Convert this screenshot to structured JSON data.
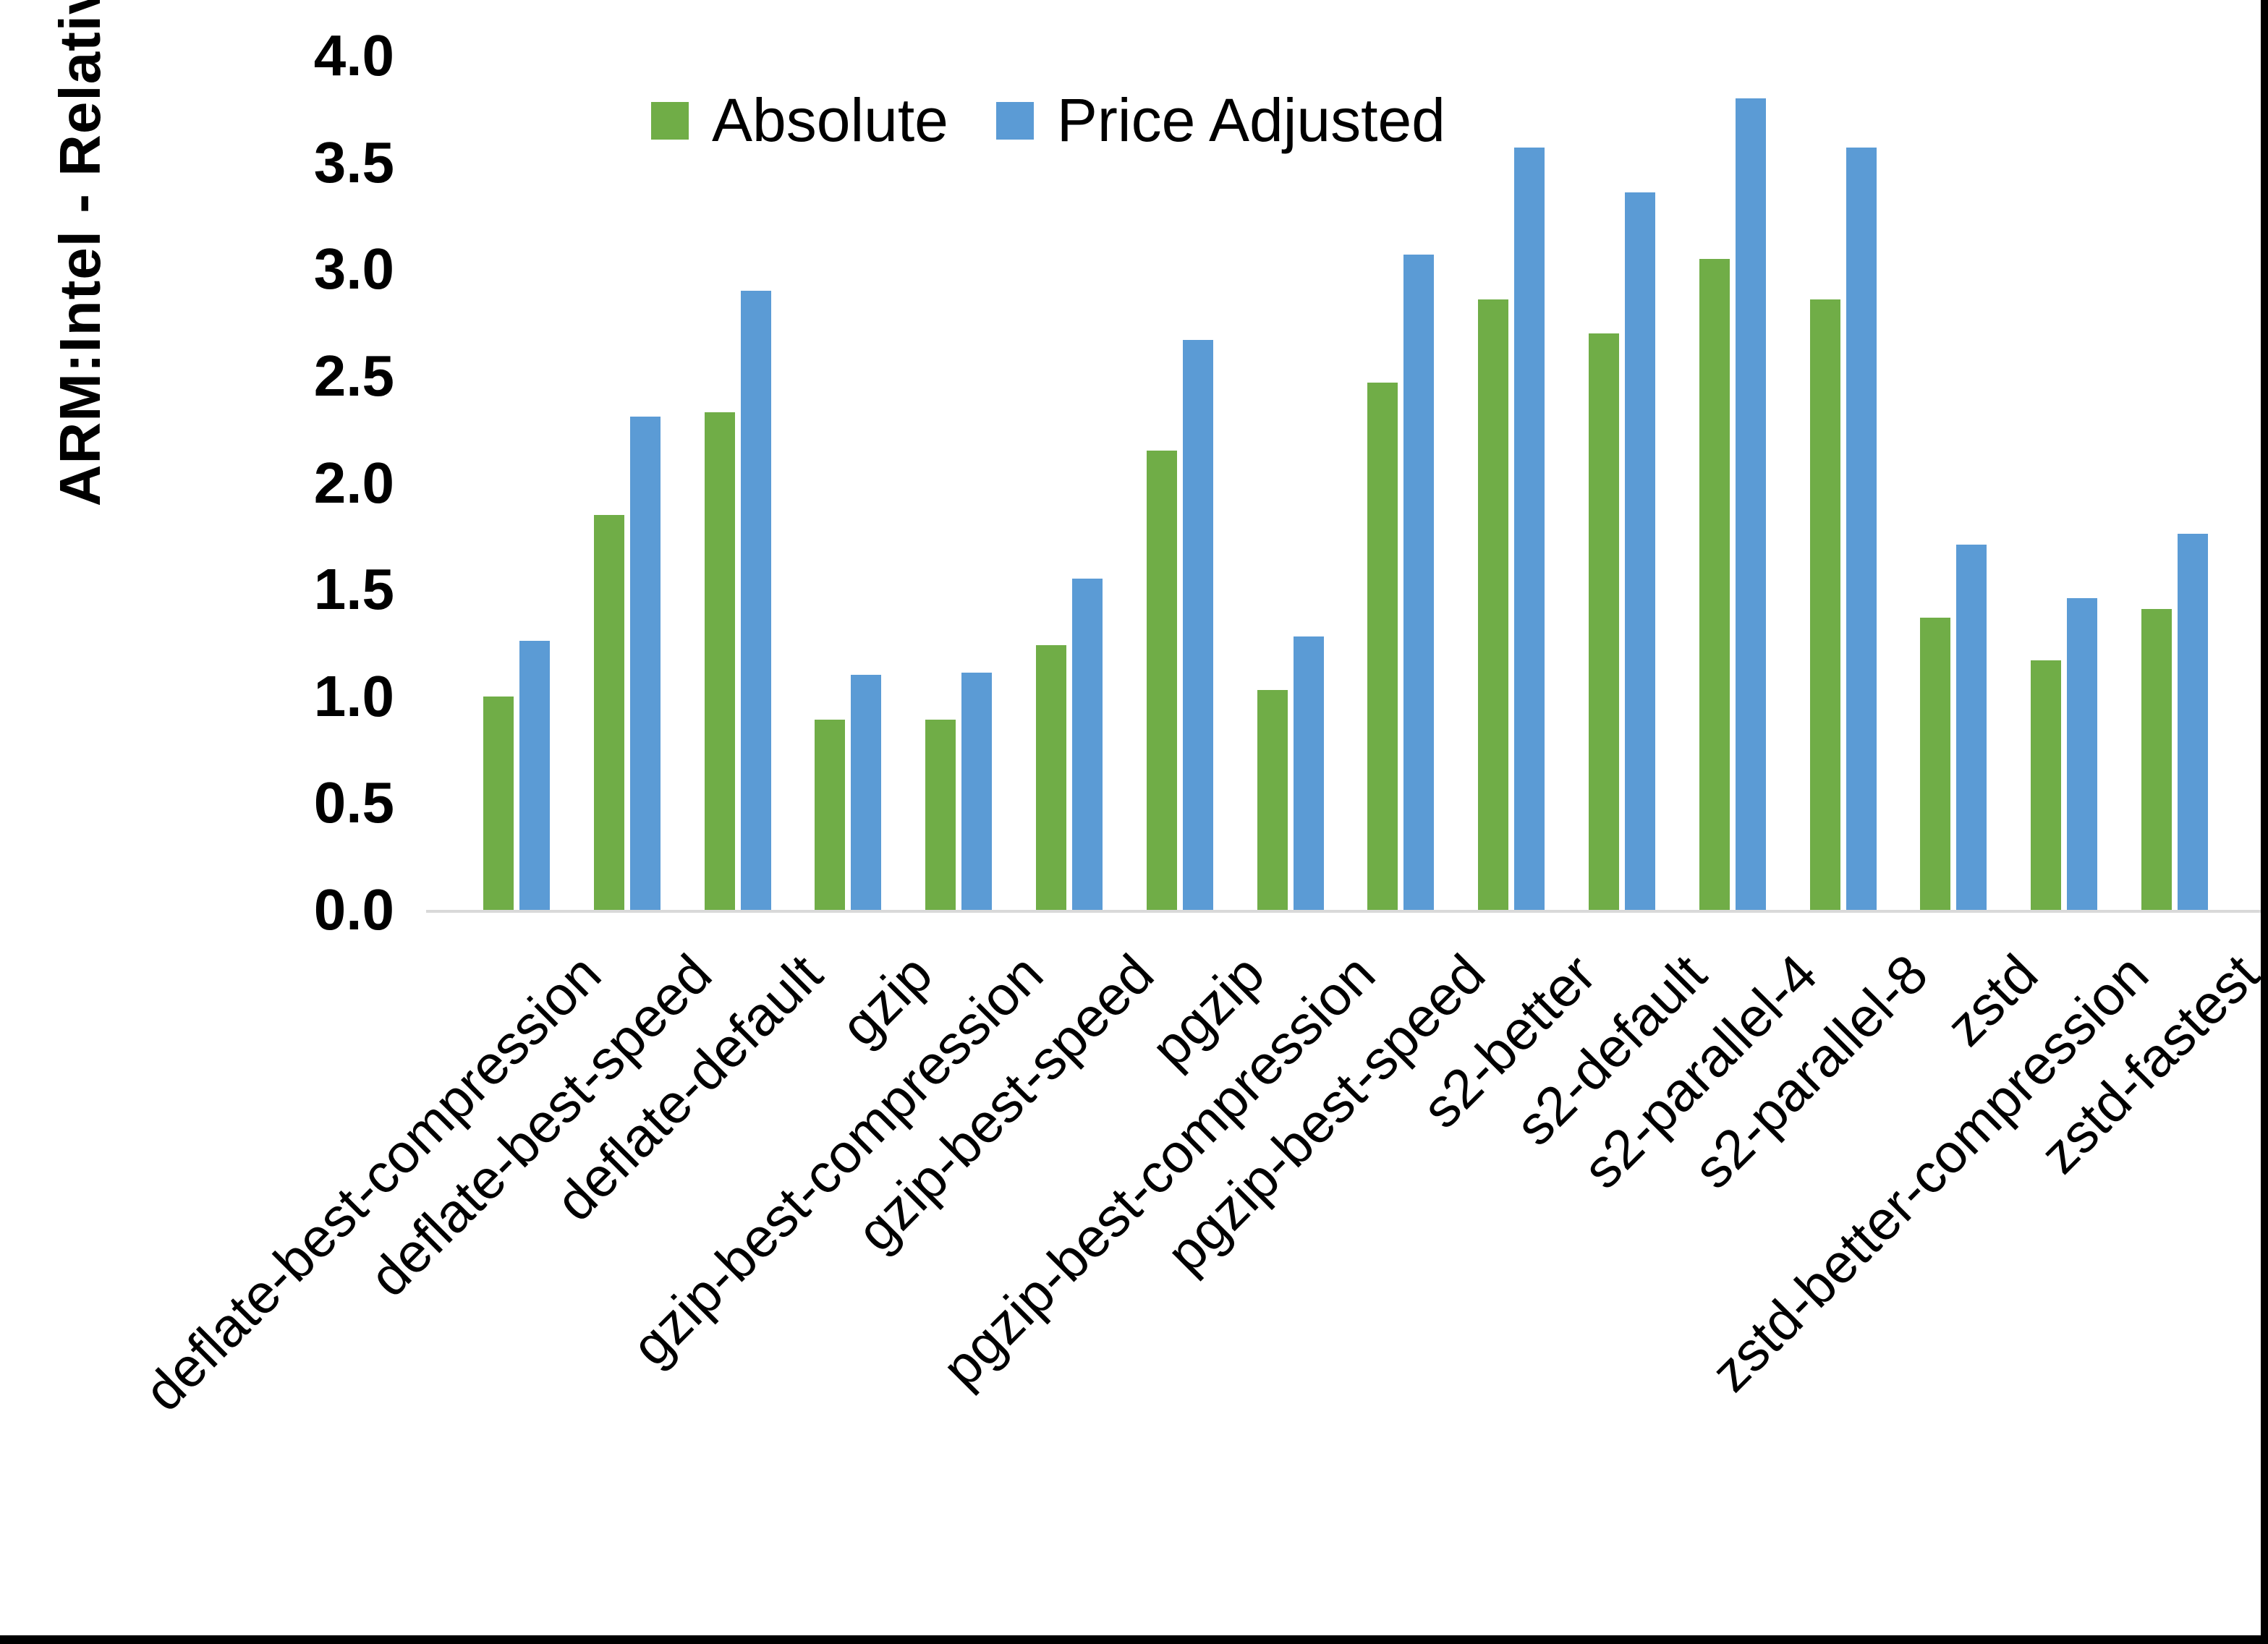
{
  "chart_data": {
    "type": "bar",
    "title": "",
    "xlabel": "",
    "ylabel": "ARM:Intel - Relative Performance",
    "ylim": [
      0.0,
      4.0
    ],
    "ytick_step": 0.5,
    "ytick_labels": [
      "0.0",
      "0.5",
      "1.0",
      "1.5",
      "2.0",
      "2.5",
      "3.0",
      "3.5",
      "4.0"
    ],
    "grid": false,
    "legend_position": "top-center",
    "axis_line_color": "#d9d9d9",
    "categories": [
      "deflate-best-compression",
      "deflate-best-speed",
      "deflate-default",
      "gzip",
      "gzip-best-compression",
      "gzip-best-speed",
      "pgzip",
      "pgzip-best-compression",
      "pgzip-best-speed",
      "s2-better",
      "s2-default",
      "s2-parallel-4",
      "s2-parallel-8",
      "zstd",
      "zstd-better-compression",
      "zstd-fastest"
    ],
    "series": [
      {
        "name": "Absolute",
        "color": "#70AD47",
        "values": [
          1.0,
          1.85,
          2.33,
          0.89,
          0.89,
          1.24,
          2.15,
          1.03,
          2.47,
          2.86,
          2.7,
          3.05,
          2.86,
          1.37,
          1.17,
          1.41
        ]
      },
      {
        "name": "Price Adjusted",
        "color": "#5B9BD5",
        "values": [
          1.26,
          2.31,
          2.9,
          1.1,
          1.11,
          1.55,
          2.67,
          1.28,
          3.07,
          3.57,
          3.36,
          3.8,
          3.57,
          1.71,
          1.46,
          1.76
        ]
      }
    ]
  }
}
